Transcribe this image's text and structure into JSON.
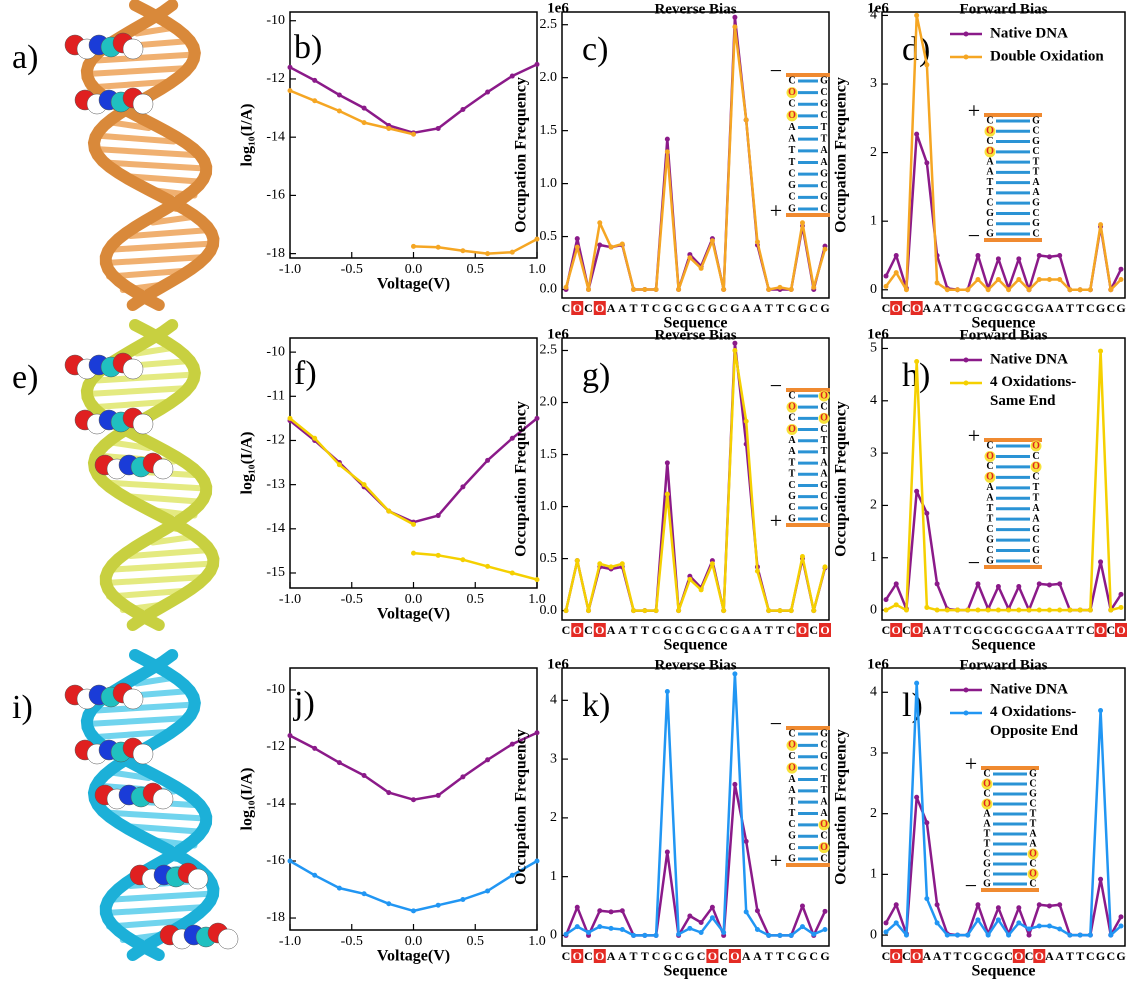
{
  "images": [
    {
      "label": "a)"
    },
    {
      "label": "e)"
    },
    {
      "label": "i)"
    }
  ],
  "chart_data": [
    {
      "type": "line",
      "label": "b)",
      "xlabel": "Voltage(V)",
      "ylabel": "log₁₀(I/A)",
      "xlim": [
        -1,
        1
      ],
      "ylim": [
        -18.15,
        -9.7
      ],
      "xticks": [
        {
          "value": -1,
          "label": "-1.0"
        },
        -0.5,
        {
          "value": 0,
          "label": "0.0"
        },
        0.5,
        {
          "value": 1,
          "label": "1.0"
        }
      ],
      "yticks": [
        -10,
        -12,
        -14,
        -16,
        -18
      ],
      "series": [
        {
          "color": "#8b1a89",
          "x": [
            -1,
            -0.8,
            -0.6,
            -0.4,
            -0.2,
            0,
            0.2,
            0.4,
            0.6,
            0.8,
            1
          ],
          "values": [
            -11.6,
            -12.05,
            -12.55,
            -13.0,
            -13.6,
            -13.85,
            -13.7,
            -13.05,
            -12.45,
            -11.9,
            -11.5
          ]
        },
        {
          "color": "#f5a623",
          "x": [
            -1,
            -0.8,
            -0.6,
            -0.4,
            -0.2,
            0,
            0,
            0,
            0.2,
            0.4,
            0.6,
            0.8,
            1
          ],
          "values": [
            -12.4,
            -12.75,
            -13.1,
            -13.5,
            -13.7,
            -13.9,
            null,
            -17.75,
            -17.78,
            -17.9,
            -18.0,
            -17.95,
            -17.5
          ]
        }
      ]
    },
    {
      "type": "line",
      "label": "c)",
      "title": "Reverse Bias",
      "y_offset_label": "1e6",
      "xlabel": "Sequence",
      "ylabel": "Occupation Frequency",
      "categories": [
        "C",
        "O",
        "C",
        "O",
        "A",
        "A",
        "T",
        "T",
        "C",
        "G",
        "C",
        "G",
        "C",
        "G",
        "C",
        "G",
        "A",
        "A",
        "T",
        "T",
        "C",
        "G",
        "C",
        "G"
      ],
      "boxed_categories": [
        1,
        3
      ],
      "ylim": [
        -0.08,
        2.62
      ],
      "yticks": [
        {
          "value": 0,
          "label": "0.0"
        },
        0.5,
        {
          "value": 1,
          "label": "1.0"
        },
        1.5,
        {
          "value": 2,
          "label": "2.0"
        },
        2.5
      ],
      "inset": {
        "top_sign": "−",
        "bottom_sign": "+",
        "left": [
          "C",
          "O",
          "C",
          "O",
          "A",
          "A",
          "T",
          "T",
          "C",
          "G",
          "C",
          "G"
        ],
        "right": [
          "G",
          "C",
          "G",
          "C",
          "T",
          "T",
          "A",
          "A",
          "G",
          "C",
          "G",
          "C"
        ],
        "left_highlight": [
          1,
          3
        ],
        "right_highlight": []
      },
      "series": [
        {
          "color": "#8b1a89",
          "values": [
            0,
            0.48,
            0,
            0.42,
            0.4,
            0.42,
            0,
            0,
            0,
            1.42,
            0,
            0.33,
            0.22,
            0.48,
            0,
            2.57,
            1.6,
            0.42,
            0,
            0,
            0,
            0.6,
            0,
            0.41
          ]
        },
        {
          "color": "#f5a623",
          "values": [
            0.02,
            0.4,
            0,
            0.63,
            0.4,
            0.43,
            0,
            0,
            0,
            1.3,
            0,
            0.3,
            0.2,
            0.46,
            0,
            2.48,
            1.6,
            0.45,
            0,
            0.02,
            0,
            0.63,
            0.02,
            0.38
          ]
        }
      ]
    },
    {
      "type": "line",
      "label": "d)",
      "title": "Forward Bias",
      "y_offset_label": "1e6",
      "xlabel": "Sequence",
      "ylabel": "Occupation Frequency",
      "legend": "upper right",
      "categories": [
        "C",
        "O",
        "C",
        "O",
        "A",
        "A",
        "T",
        "T",
        "C",
        "G",
        "C",
        "G",
        "C",
        "G",
        "C",
        "G",
        "A",
        "A",
        "T",
        "T",
        "C",
        "G",
        "C",
        "G"
      ],
      "boxed_categories": [
        1,
        3
      ],
      "ylim": [
        -0.12,
        4.05
      ],
      "yticks": [
        0,
        1,
        2,
        3,
        4
      ],
      "inset": {
        "top_sign": "+",
        "bottom_sign": "−",
        "left": [
          "C",
          "O",
          "C",
          "O",
          "A",
          "A",
          "T",
          "T",
          "C",
          "G",
          "C",
          "G"
        ],
        "right": [
          "G",
          "C",
          "G",
          "C",
          "T",
          "T",
          "A",
          "A",
          "G",
          "C",
          "G",
          "C"
        ],
        "left_highlight": [
          1,
          3
        ],
        "right_highlight": []
      },
      "series": [
        {
          "name": "Native DNA",
          "color": "#8b1a89",
          "values": [
            0.2,
            0.5,
            0.02,
            2.27,
            1.85,
            0.5,
            0.02,
            0,
            0,
            0.5,
            0.02,
            0.45,
            0.02,
            0.45,
            0,
            0.5,
            0.48,
            0.5,
            0,
            0,
            0,
            0.92,
            0,
            0.3
          ]
        },
        {
          "name": "Double Oxidation",
          "color": "#f5a623",
          "values": [
            0.05,
            0.25,
            0,
            4.0,
            3.28,
            0.1,
            0,
            0,
            0,
            0.15,
            0,
            0.15,
            0,
            0.15,
            0,
            0.15,
            0.15,
            0.15,
            0,
            0,
            0,
            0.95,
            0,
            0.15
          ]
        }
      ]
    },
    {
      "type": "line",
      "label": "f)",
      "xlabel": "Voltage(V)",
      "ylabel": "log₁₀(I/A)",
      "xlim": [
        -1,
        1
      ],
      "ylim": [
        -15.34,
        -9.68
      ],
      "xticks": [
        {
          "value": -1,
          "label": "-1.0"
        },
        -0.5,
        {
          "value": 0,
          "label": "0.0"
        },
        0.5,
        {
          "value": 1,
          "label": "1.0"
        }
      ],
      "yticks": [
        -10,
        -11,
        -12,
        -13,
        -14,
        -15
      ],
      "series": [
        {
          "color": "#8b1a89",
          "x": [
            -1,
            -0.8,
            -0.6,
            -0.4,
            -0.2,
            0,
            0.2,
            0.4,
            0.6,
            0.8,
            1
          ],
          "values": [
            -11.55,
            -12.0,
            -12.5,
            -13.05,
            -13.6,
            -13.85,
            -13.7,
            -13.05,
            -12.45,
            -11.95,
            -11.5
          ]
        },
        {
          "color": "#f5d000",
          "x": [
            -1,
            -0.8,
            -0.6,
            -0.4,
            -0.2,
            0,
            0,
            0,
            0.2,
            0.4,
            0.6,
            0.8,
            1
          ],
          "values": [
            -11.5,
            -11.95,
            -12.55,
            -13.0,
            -13.6,
            -13.9,
            null,
            -14.55,
            -14.6,
            -14.7,
            -14.85,
            -15.0,
            -15.15
          ]
        }
      ]
    },
    {
      "type": "line",
      "label": "g)",
      "title": "Reverse Bias",
      "y_offset_label": "1e6",
      "xlabel": "Sequence",
      "ylabel": "Occupation Frequency",
      "categories": [
        "C",
        "O",
        "C",
        "O",
        "A",
        "A",
        "T",
        "T",
        "C",
        "G",
        "C",
        "G",
        "C",
        "G",
        "C",
        "G",
        "A",
        "A",
        "T",
        "T",
        "C",
        "O",
        "C",
        "O"
      ],
      "boxed_categories": [
        1,
        3,
        21,
        23
      ],
      "ylim": [
        -0.09,
        2.62
      ],
      "yticks": [
        {
          "value": 0,
          "label": "0.0"
        },
        0.5,
        {
          "value": 1,
          "label": "1.0"
        },
        1.5,
        {
          "value": 2,
          "label": "2.0"
        },
        2.5
      ],
      "inset": {
        "top_sign": "−",
        "bottom_sign": "+",
        "left": [
          "C",
          "O",
          "C",
          "O",
          "A",
          "A",
          "T",
          "T",
          "C",
          "G",
          "C",
          "G"
        ],
        "right": [
          "O",
          "C",
          "O",
          "C",
          "T",
          "T",
          "A",
          "A",
          "G",
          "C",
          "G",
          "C"
        ],
        "left_highlight": [
          1,
          3
        ],
        "right_highlight": [
          0,
          2
        ]
      },
      "series": [
        {
          "color": "#8b1a89",
          "values": [
            0,
            0.48,
            0,
            0.42,
            0.4,
            0.42,
            0,
            0,
            0,
            1.42,
            0,
            0.33,
            0.22,
            0.48,
            0,
            2.57,
            1.6,
            0.42,
            0,
            0,
            0,
            0.5,
            0,
            0.41
          ]
        },
        {
          "color": "#f5d000",
          "values": [
            0,
            0.48,
            0,
            0.45,
            0.42,
            0.45,
            0,
            0,
            0,
            1.12,
            0,
            0.3,
            0.2,
            0.45,
            0,
            2.5,
            1.82,
            0.38,
            0,
            0,
            0,
            0.52,
            0,
            0.42
          ]
        }
      ]
    },
    {
      "type": "line",
      "label": "h)",
      "title": "Forward Bias",
      "y_offset_label": "1e6",
      "xlabel": "Sequence",
      "ylabel": "Occupation Frequency",
      "legend": "upper right",
      "categories": [
        "C",
        "O",
        "C",
        "O",
        "A",
        "A",
        "T",
        "T",
        "C",
        "G",
        "C",
        "G",
        "C",
        "G",
        "C",
        "G",
        "A",
        "A",
        "T",
        "T",
        "C",
        "O",
        "C",
        "O"
      ],
      "boxed_categories": [
        1,
        3,
        21,
        23
      ],
      "ylim": [
        -0.19,
        5.2
      ],
      "yticks": [
        0,
        1,
        2,
        3,
        4,
        5
      ],
      "inset": {
        "top_sign": "+",
        "bottom_sign": "−",
        "left": [
          "C",
          "O",
          "C",
          "O",
          "A",
          "A",
          "T",
          "T",
          "C",
          "G",
          "C",
          "G"
        ],
        "right": [
          "O",
          "C",
          "O",
          "C",
          "T",
          "T",
          "A",
          "A",
          "G",
          "C",
          "G",
          "C"
        ],
        "left_highlight": [
          1,
          3
        ],
        "right_highlight": [
          0,
          2
        ]
      },
      "series": [
        {
          "name": "Native DNA",
          "color": "#8b1a89",
          "values": [
            0.2,
            0.5,
            0.02,
            2.27,
            1.85,
            0.5,
            0.02,
            0,
            0,
            0.5,
            0.02,
            0.45,
            0.02,
            0.45,
            0,
            0.5,
            0.48,
            0.5,
            0,
            0,
            0,
            0.92,
            0,
            0.3
          ]
        },
        {
          "name": "4 Oxidations-Same End",
          "color": "#f5d000",
          "values": [
            0,
            0.1,
            0,
            4.75,
            0.05,
            0,
            0,
            0,
            0,
            0,
            0,
            0,
            0,
            0,
            0,
            0,
            0,
            0,
            0,
            0,
            0,
            4.95,
            0,
            0.05
          ]
        }
      ]
    },
    {
      "type": "line",
      "label": "j)",
      "xlabel": "Voltage(V)",
      "ylabel": "log₁₀(I/A)",
      "xlim": [
        -1,
        1
      ],
      "ylim": [
        -18.42,
        -9.23
      ],
      "xticks": [
        {
          "value": -1,
          "label": "-1.0"
        },
        -0.5,
        {
          "value": 0,
          "label": "0.0"
        },
        0.5,
        {
          "value": 1,
          "label": "1.0"
        }
      ],
      "yticks": [
        -10,
        -12,
        -14,
        -16,
        -18
      ],
      "series": [
        {
          "color": "#8b1a89",
          "x": [
            -1,
            -0.8,
            -0.6,
            -0.4,
            -0.2,
            0,
            0.2,
            0.4,
            0.6,
            0.8,
            1
          ],
          "values": [
            -11.6,
            -12.05,
            -12.55,
            -13.0,
            -13.6,
            -13.85,
            -13.7,
            -13.05,
            -12.45,
            -11.9,
            -11.5
          ]
        },
        {
          "color": "#2196f3",
          "x": [
            -1,
            -0.8,
            -0.6,
            -0.4,
            -0.2,
            0,
            0.2,
            0.4,
            0.6,
            0.8,
            1
          ],
          "values": [
            -16.0,
            -16.5,
            -16.95,
            -17.15,
            -17.5,
            -17.75,
            -17.55,
            -17.35,
            -17.05,
            -16.5,
            -16.0
          ]
        }
      ]
    },
    {
      "type": "line",
      "label": "k)",
      "title": "Reverse Bias",
      "y_offset_label": "1e6",
      "xlabel": "Sequence",
      "ylabel": "Occupation Frequency",
      "categories": [
        "C",
        "O",
        "C",
        "O",
        "A",
        "A",
        "T",
        "T",
        "C",
        "G",
        "C",
        "G",
        "C",
        "O",
        "C",
        "O",
        "A",
        "A",
        "T",
        "T",
        "C",
        "G",
        "C",
        "G"
      ],
      "boxed_categories": [
        1,
        3,
        13,
        15
      ],
      "ylim": [
        -0.18,
        4.55
      ],
      "yticks": [
        0,
        1,
        2,
        3,
        4
      ],
      "inset": {
        "top_sign": "−",
        "bottom_sign": "+",
        "left": [
          "C",
          "O",
          "C",
          "O",
          "A",
          "A",
          "T",
          "T",
          "C",
          "G",
          "C",
          "G"
        ],
        "right": [
          "G",
          "C",
          "G",
          "C",
          "T",
          "T",
          "A",
          "A",
          "O",
          "C",
          "O",
          "C"
        ],
        "left_highlight": [
          1,
          3
        ],
        "right_highlight": [
          8,
          10
        ]
      },
      "series": [
        {
          "color": "#8b1a89",
          "values": [
            0,
            0.48,
            0,
            0.42,
            0.4,
            0.42,
            0,
            0,
            0,
            1.42,
            0,
            0.33,
            0.22,
            0.48,
            0,
            2.57,
            1.6,
            0.42,
            0,
            0,
            0,
            0.5,
            0,
            0.41
          ]
        },
        {
          "color": "#2196f3",
          "values": [
            0.02,
            0.15,
            0.05,
            0.15,
            0.12,
            0.1,
            0,
            0,
            0,
            4.15,
            0.02,
            0.12,
            0.05,
            0.3,
            0.05,
            4.45,
            0.4,
            0.1,
            0,
            0,
            0,
            0.15,
            0.02,
            0.1
          ]
        }
      ]
    },
    {
      "type": "line",
      "label": "l)",
      "title": "Forward Bias",
      "y_offset_label": "1e6",
      "xlabel": "Sequence",
      "ylabel": "Occupation Frequency",
      "legend": "upper right",
      "categories": [
        "C",
        "O",
        "C",
        "O",
        "A",
        "A",
        "T",
        "T",
        "C",
        "G",
        "C",
        "G",
        "C",
        "O",
        "C",
        "O",
        "A",
        "A",
        "T",
        "T",
        "C",
        "G",
        "C",
        "G"
      ],
      "boxed_categories": [
        1,
        3,
        13,
        15
      ],
      "ylim": [
        -0.18,
        4.4
      ],
      "yticks": [
        0,
        1,
        2,
        3,
        4
      ],
      "inset": {
        "top_sign": "+",
        "bottom_sign": "−",
        "left": [
          "C",
          "O",
          "C",
          "O",
          "A",
          "A",
          "T",
          "T",
          "C",
          "G",
          "C",
          "G"
        ],
        "right": [
          "G",
          "C",
          "G",
          "C",
          "T",
          "T",
          "A",
          "A",
          "O",
          "C",
          "O",
          "C"
        ],
        "left_highlight": [
          1,
          3
        ],
        "right_highlight": [
          8,
          10
        ]
      },
      "series": [
        {
          "name": "Native DNA",
          "color": "#8b1a89",
          "values": [
            0.2,
            0.5,
            0.02,
            2.27,
            1.85,
            0.5,
            0.02,
            0,
            0,
            0.5,
            0.02,
            0.45,
            0.02,
            0.45,
            0,
            0.5,
            0.48,
            0.5,
            0,
            0,
            0,
            0.92,
            0,
            0.3
          ]
        },
        {
          "name": "4 Oxidations-Opposite End",
          "color": "#2196f3",
          "values": [
            0.05,
            0.2,
            0,
            4.15,
            0.6,
            0.2,
            0,
            0,
            0,
            0.25,
            0,
            0.25,
            0,
            0.2,
            0.1,
            0.15,
            0.15,
            0.1,
            0,
            0,
            0,
            3.7,
            0,
            0.15
          ]
        }
      ]
    }
  ]
}
